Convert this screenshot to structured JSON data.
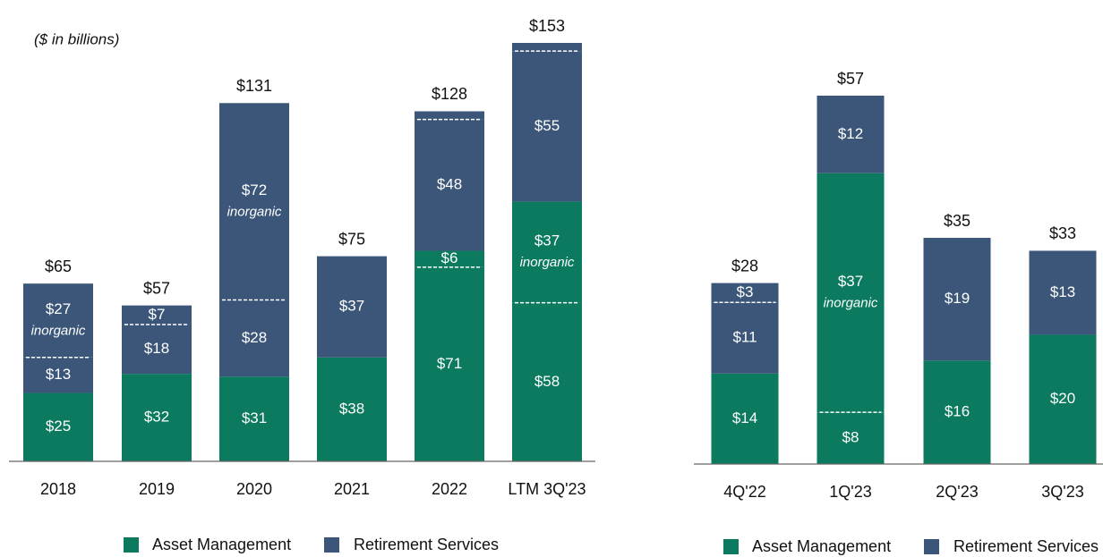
{
  "chart_data": [
    {
      "type": "stacked_bar",
      "note": "($ in billions)",
      "categories": [
        "2018",
        "2019",
        "2020",
        "2021",
        "2022",
        "LTM 3Q'23"
      ],
      "totals": [
        65,
        57,
        131,
        75,
        128,
        153
      ],
      "total_labels": [
        "$65",
        "$57",
        "$131",
        "$75",
        "$128",
        "$153"
      ],
      "series": [
        {
          "name": "Asset Management",
          "color": "#0b7a5e",
          "values": [
            [
              25
            ],
            [
              32
            ],
            [
              31
            ],
            [
              38
            ],
            [
              71,
              6
            ],
            [
              58,
              37
            ]
          ],
          "value_labels": [
            [
              "$25"
            ],
            [
              "$32"
            ],
            [
              "$31"
            ],
            [
              "$38"
            ],
            [
              "$71",
              "$6"
            ],
            [
              "$58",
              "$37"
            ]
          ],
          "notes": [
            [
              null
            ],
            [
              null
            ],
            [
              null
            ],
            [
              null
            ],
            [
              null,
              null
            ],
            [
              null,
              "inorganic"
            ]
          ]
        },
        {
          "name": "Retirement Services",
          "color": "#3b5678",
          "values": [
            [
              13,
              27
            ],
            [
              18,
              7
            ],
            [
              28,
              72
            ],
            [
              37
            ],
            [
              48,
              3
            ],
            [
              55,
              3
            ]
          ],
          "value_labels": [
            [
              "$13",
              "$27"
            ],
            [
              "$18",
              "$7"
            ],
            [
              "$28",
              "$72"
            ],
            [
              "$37"
            ],
            [
              "$48",
              null
            ],
            [
              "$55",
              null
            ]
          ],
          "notes": [
            [
              null,
              "inorganic"
            ],
            [
              null,
              null
            ],
            [
              null,
              "inorganic"
            ],
            [
              null
            ],
            [
              null,
              null
            ],
            [
              null,
              null
            ]
          ]
        }
      ]
    },
    {
      "type": "stacked_bar",
      "categories": [
        "4Q'22",
        "1Q'23",
        "2Q'23",
        "3Q'23"
      ],
      "totals": [
        28,
        57,
        35,
        33
      ],
      "total_labels": [
        "$28",
        "$57",
        "$35",
        "$33"
      ],
      "series": [
        {
          "name": "Asset Management",
          "color": "#0b7a5e",
          "values": [
            [
              14
            ],
            [
              8,
              37
            ],
            [
              16
            ],
            [
              20
            ]
          ],
          "value_labels": [
            [
              "$14"
            ],
            [
              "$8",
              "$37"
            ],
            [
              "$16"
            ],
            [
              "$20"
            ]
          ],
          "notes": [
            [
              null
            ],
            [
              null,
              "inorganic"
            ],
            [
              null
            ],
            [
              null
            ]
          ]
        },
        {
          "name": "Retirement Services",
          "color": "#3b5678",
          "values": [
            [
              11,
              3
            ],
            [
              12
            ],
            [
              19
            ],
            [
              13
            ]
          ],
          "value_labels": [
            [
              "$11",
              "$3"
            ],
            [
              "$12"
            ],
            [
              "$19"
            ],
            [
              "$13"
            ]
          ],
          "notes": [
            [
              null,
              null
            ],
            [
              null
            ],
            [
              null
            ],
            [
              null
            ]
          ]
        }
      ]
    }
  ]
}
